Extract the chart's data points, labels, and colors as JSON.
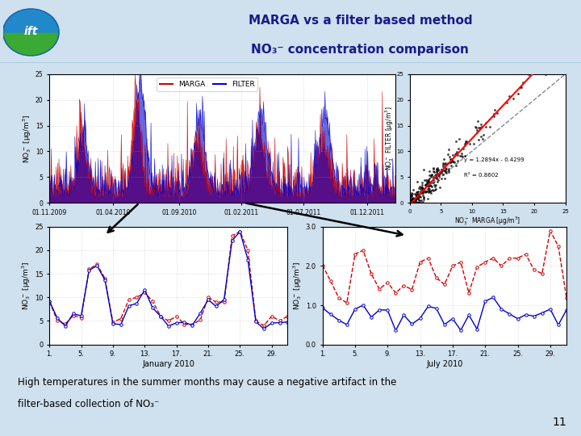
{
  "title_line1": "MARGA vs a filter based method",
  "title_line2": "NO₃⁻ concentration comparison",
  "bg_color": "#cfe0ee",
  "caption_line1": "High temperatures in the summer months may cause a negative artifact in the",
  "caption_line2": "filter-based collection of NO₃⁻",
  "slide_number": "11",
  "legend_marga": "MARGA",
  "legend_filter": "FILTER",
  "marga_color": "#cc0000",
  "filter_color": "#0000cc",
  "scatter_eq": "y = 1.2894x - 0.4299",
  "scatter_r2": "R² = 0.8602",
  "jan_xlabel": "January 2010",
  "jul_xlabel": "July 2010",
  "header_bg": "#ddeef8",
  "title_color": "#1a1a8a"
}
